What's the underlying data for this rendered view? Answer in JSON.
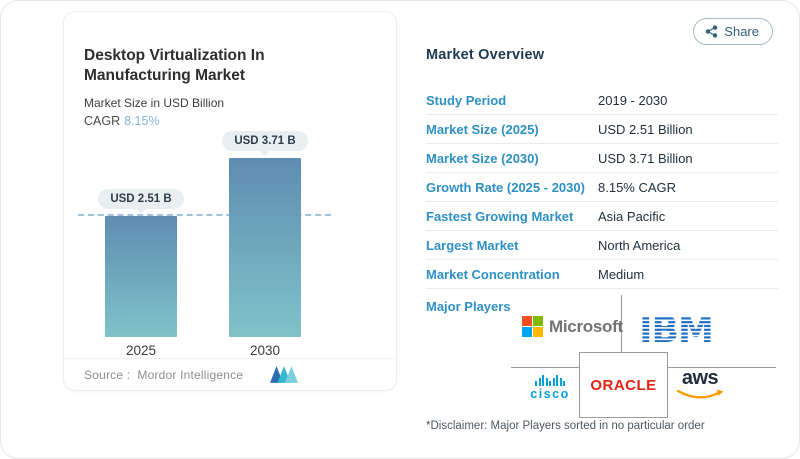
{
  "header": {
    "share_label": "Share"
  },
  "chart_card": {
    "title": "Desktop Virtualization In Manufacturing Market",
    "subtitle": "Market Size in USD Billion",
    "cagr_label": "CAGR",
    "cagr_value": "8.15%",
    "source_label": "Source :",
    "source_value": "Mordor Intelligence"
  },
  "chart_data": {
    "type": "bar",
    "categories": [
      "2025",
      "2030"
    ],
    "values": [
      2.51,
      3.71
    ],
    "value_labels": [
      "USD 2.51 B",
      "USD 3.71 B"
    ],
    "unit": "USD Billion",
    "reference_line_value": 2.51,
    "ylim": [
      0,
      4
    ],
    "grid": false,
    "bar_gradient": [
      "#5f8db1",
      "#7fc3c9"
    ],
    "reference_line_color": "#9fc3dd"
  },
  "overview": {
    "heading": "Market Overview",
    "rows": [
      {
        "label": "Study Period",
        "value": "2019 - 2030"
      },
      {
        "label": "Market Size (2025)",
        "value": "USD 2.51 Billion"
      },
      {
        "label": "Market Size (2030)",
        "value": "USD 3.71 Billion"
      },
      {
        "label": "Growth Rate (2025 - 2030)",
        "value": "8.15% CAGR"
      },
      {
        "label": "Fastest Growing Market",
        "value": "Asia Pacific"
      },
      {
        "label": "Largest Market",
        "value": "North America"
      },
      {
        "label": "Market Concentration",
        "value": "Medium"
      }
    ],
    "major_players_label": "Major Players",
    "disclaimer": "*Disclaimer: Major Players sorted in no particular order"
  },
  "logos": {
    "microsoft": "Microsoft",
    "ibm": "IBM",
    "cisco": "cisco",
    "oracle": "ORACLE",
    "aws": "aws"
  },
  "colors": {
    "label_blue": "#2e90c5",
    "value_dark": "#22313f",
    "heading_navy": "#1d3a52",
    "cagr_blue": "#82b4d8",
    "share_teal": "#2f6377",
    "badge_bg": "#e9eef1",
    "divider_gray": "#9b9b9b"
  }
}
